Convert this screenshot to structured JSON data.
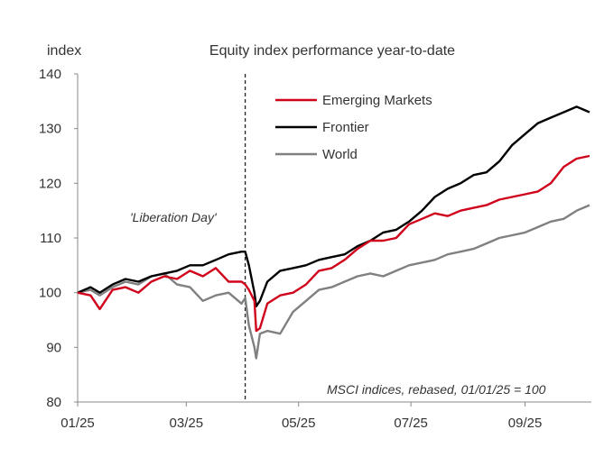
{
  "chart_data": {
    "type": "line",
    "title": "Equity index performance year-to-date",
    "ylabel": "index",
    "xlabel": "",
    "ylim": [
      80,
      140
    ],
    "yticks": [
      80,
      90,
      100,
      110,
      120,
      130,
      140
    ],
    "xlim": [
      "2025-01-01",
      "2025-10-07"
    ],
    "xticks": [
      {
        "date": "2025-01-01",
        "label": "01/25"
      },
      {
        "date": "2025-03-01",
        "label": "03/25"
      },
      {
        "date": "2025-05-01",
        "label": "05/25"
      },
      {
        "date": "2025-07-01",
        "label": "07/25"
      },
      {
        "date": "2025-09-01",
        "label": "09/25"
      }
    ],
    "grid": false,
    "legend_position": "top-center",
    "annotations": [
      {
        "text": "'Liberation Day'",
        "date": "2025-04-02",
        "style": "dashed-vertical-line"
      },
      {
        "text": "MSCI indices, rebased, 01/01/25 = 100",
        "position": "bottom-right"
      }
    ],
    "series": [
      {
        "name": "Emerging Markets",
        "color": "#d0021b",
        "points": [
          [
            "2025-01-01",
            100
          ],
          [
            "2025-01-08",
            99.5
          ],
          [
            "2025-01-13",
            97
          ],
          [
            "2025-01-20",
            100.5
          ],
          [
            "2025-01-27",
            101
          ],
          [
            "2025-02-03",
            100
          ],
          [
            "2025-02-10",
            102
          ],
          [
            "2025-02-17",
            103
          ],
          [
            "2025-02-24",
            102.5
          ],
          [
            "2025-03-03",
            104
          ],
          [
            "2025-03-10",
            103
          ],
          [
            "2025-03-17",
            104.5
          ],
          [
            "2025-03-24",
            102
          ],
          [
            "2025-03-31",
            102
          ],
          [
            "2025-04-02",
            101.5
          ],
          [
            "2025-04-04",
            100.5
          ],
          [
            "2025-04-07",
            98.5
          ],
          [
            "2025-04-08",
            93
          ],
          [
            "2025-04-10",
            93.5
          ],
          [
            "2025-04-14",
            98
          ],
          [
            "2025-04-21",
            99.5
          ],
          [
            "2025-04-28",
            100
          ],
          [
            "2025-05-05",
            101.5
          ],
          [
            "2025-05-12",
            104
          ],
          [
            "2025-05-19",
            104.5
          ],
          [
            "2025-05-26",
            106
          ],
          [
            "2025-06-02",
            108
          ],
          [
            "2025-06-09",
            109.5
          ],
          [
            "2025-06-16",
            109.5
          ],
          [
            "2025-06-23",
            110
          ],
          [
            "2025-06-30",
            112.5
          ],
          [
            "2025-07-07",
            113.5
          ],
          [
            "2025-07-14",
            114.5
          ],
          [
            "2025-07-21",
            114
          ],
          [
            "2025-07-28",
            115
          ],
          [
            "2025-08-04",
            115.5
          ],
          [
            "2025-08-11",
            116
          ],
          [
            "2025-08-18",
            117
          ],
          [
            "2025-08-25",
            117.5
          ],
          [
            "2025-09-01",
            118
          ],
          [
            "2025-09-08",
            118.5
          ],
          [
            "2025-09-15",
            120
          ],
          [
            "2025-09-22",
            123
          ],
          [
            "2025-09-29",
            124.5
          ],
          [
            "2025-10-06",
            125
          ]
        ]
      },
      {
        "name": "Frontier",
        "color": "#000000",
        "points": [
          [
            "2025-01-01",
            100
          ],
          [
            "2025-01-08",
            101
          ],
          [
            "2025-01-13",
            100
          ],
          [
            "2025-01-20",
            101.5
          ],
          [
            "2025-01-27",
            102.5
          ],
          [
            "2025-02-03",
            102
          ],
          [
            "2025-02-10",
            103
          ],
          [
            "2025-02-17",
            103.5
          ],
          [
            "2025-02-24",
            104
          ],
          [
            "2025-03-03",
            105
          ],
          [
            "2025-03-10",
            105
          ],
          [
            "2025-03-17",
            106
          ],
          [
            "2025-03-24",
            107
          ],
          [
            "2025-03-31",
            107.5
          ],
          [
            "2025-04-02",
            107.5
          ],
          [
            "2025-04-04",
            105
          ],
          [
            "2025-04-07",
            100
          ],
          [
            "2025-04-08",
            97.5
          ],
          [
            "2025-04-10",
            98.5
          ],
          [
            "2025-04-14",
            102
          ],
          [
            "2025-04-21",
            104
          ],
          [
            "2025-04-28",
            104.5
          ],
          [
            "2025-05-05",
            105
          ],
          [
            "2025-05-12",
            106
          ],
          [
            "2025-05-19",
            106.5
          ],
          [
            "2025-05-26",
            107
          ],
          [
            "2025-06-02",
            108.5
          ],
          [
            "2025-06-09",
            109.5
          ],
          [
            "2025-06-16",
            111
          ],
          [
            "2025-06-23",
            111.5
          ],
          [
            "2025-06-30",
            113
          ],
          [
            "2025-07-07",
            115
          ],
          [
            "2025-07-14",
            117.5
          ],
          [
            "2025-07-21",
            119
          ],
          [
            "2025-07-28",
            120
          ],
          [
            "2025-08-04",
            121.5
          ],
          [
            "2025-08-11",
            122
          ],
          [
            "2025-08-18",
            124
          ],
          [
            "2025-08-25",
            127
          ],
          [
            "2025-09-01",
            129
          ],
          [
            "2025-09-08",
            131
          ],
          [
            "2025-09-15",
            132
          ],
          [
            "2025-09-22",
            133
          ],
          [
            "2025-09-29",
            134
          ],
          [
            "2025-10-06",
            133
          ]
        ]
      },
      {
        "name": "World",
        "color": "#808080",
        "points": [
          [
            "2025-01-01",
            100
          ],
          [
            "2025-01-08",
            100.5
          ],
          [
            "2025-01-13",
            99.5
          ],
          [
            "2025-01-20",
            101
          ],
          [
            "2025-01-27",
            102
          ],
          [
            "2025-02-03",
            101.5
          ],
          [
            "2025-02-10",
            103
          ],
          [
            "2025-02-17",
            103.5
          ],
          [
            "2025-02-24",
            101.5
          ],
          [
            "2025-03-03",
            101
          ],
          [
            "2025-03-10",
            98.5
          ],
          [
            "2025-03-17",
            99.5
          ],
          [
            "2025-03-24",
            100
          ],
          [
            "2025-03-31",
            98
          ],
          [
            "2025-04-02",
            99
          ],
          [
            "2025-04-04",
            94
          ],
          [
            "2025-04-07",
            90
          ],
          [
            "2025-04-08",
            88
          ],
          [
            "2025-04-10",
            92.5
          ],
          [
            "2025-04-14",
            93
          ],
          [
            "2025-04-21",
            92.5
          ],
          [
            "2025-04-28",
            96.5
          ],
          [
            "2025-05-05",
            98.5
          ],
          [
            "2025-05-12",
            100.5
          ],
          [
            "2025-05-19",
            101
          ],
          [
            "2025-05-26",
            102
          ],
          [
            "2025-06-02",
            103
          ],
          [
            "2025-06-09",
            103.5
          ],
          [
            "2025-06-16",
            103
          ],
          [
            "2025-06-23",
            104
          ],
          [
            "2025-06-30",
            105
          ],
          [
            "2025-07-07",
            105.5
          ],
          [
            "2025-07-14",
            106
          ],
          [
            "2025-07-21",
            107
          ],
          [
            "2025-07-28",
            107.5
          ],
          [
            "2025-08-04",
            108
          ],
          [
            "2025-08-11",
            109
          ],
          [
            "2025-08-18",
            110
          ],
          [
            "2025-08-25",
            110.5
          ],
          [
            "2025-09-01",
            111
          ],
          [
            "2025-09-08",
            112
          ],
          [
            "2025-09-15",
            113
          ],
          [
            "2025-09-22",
            113.5
          ],
          [
            "2025-09-29",
            115
          ],
          [
            "2025-10-06",
            116
          ]
        ]
      }
    ]
  }
}
